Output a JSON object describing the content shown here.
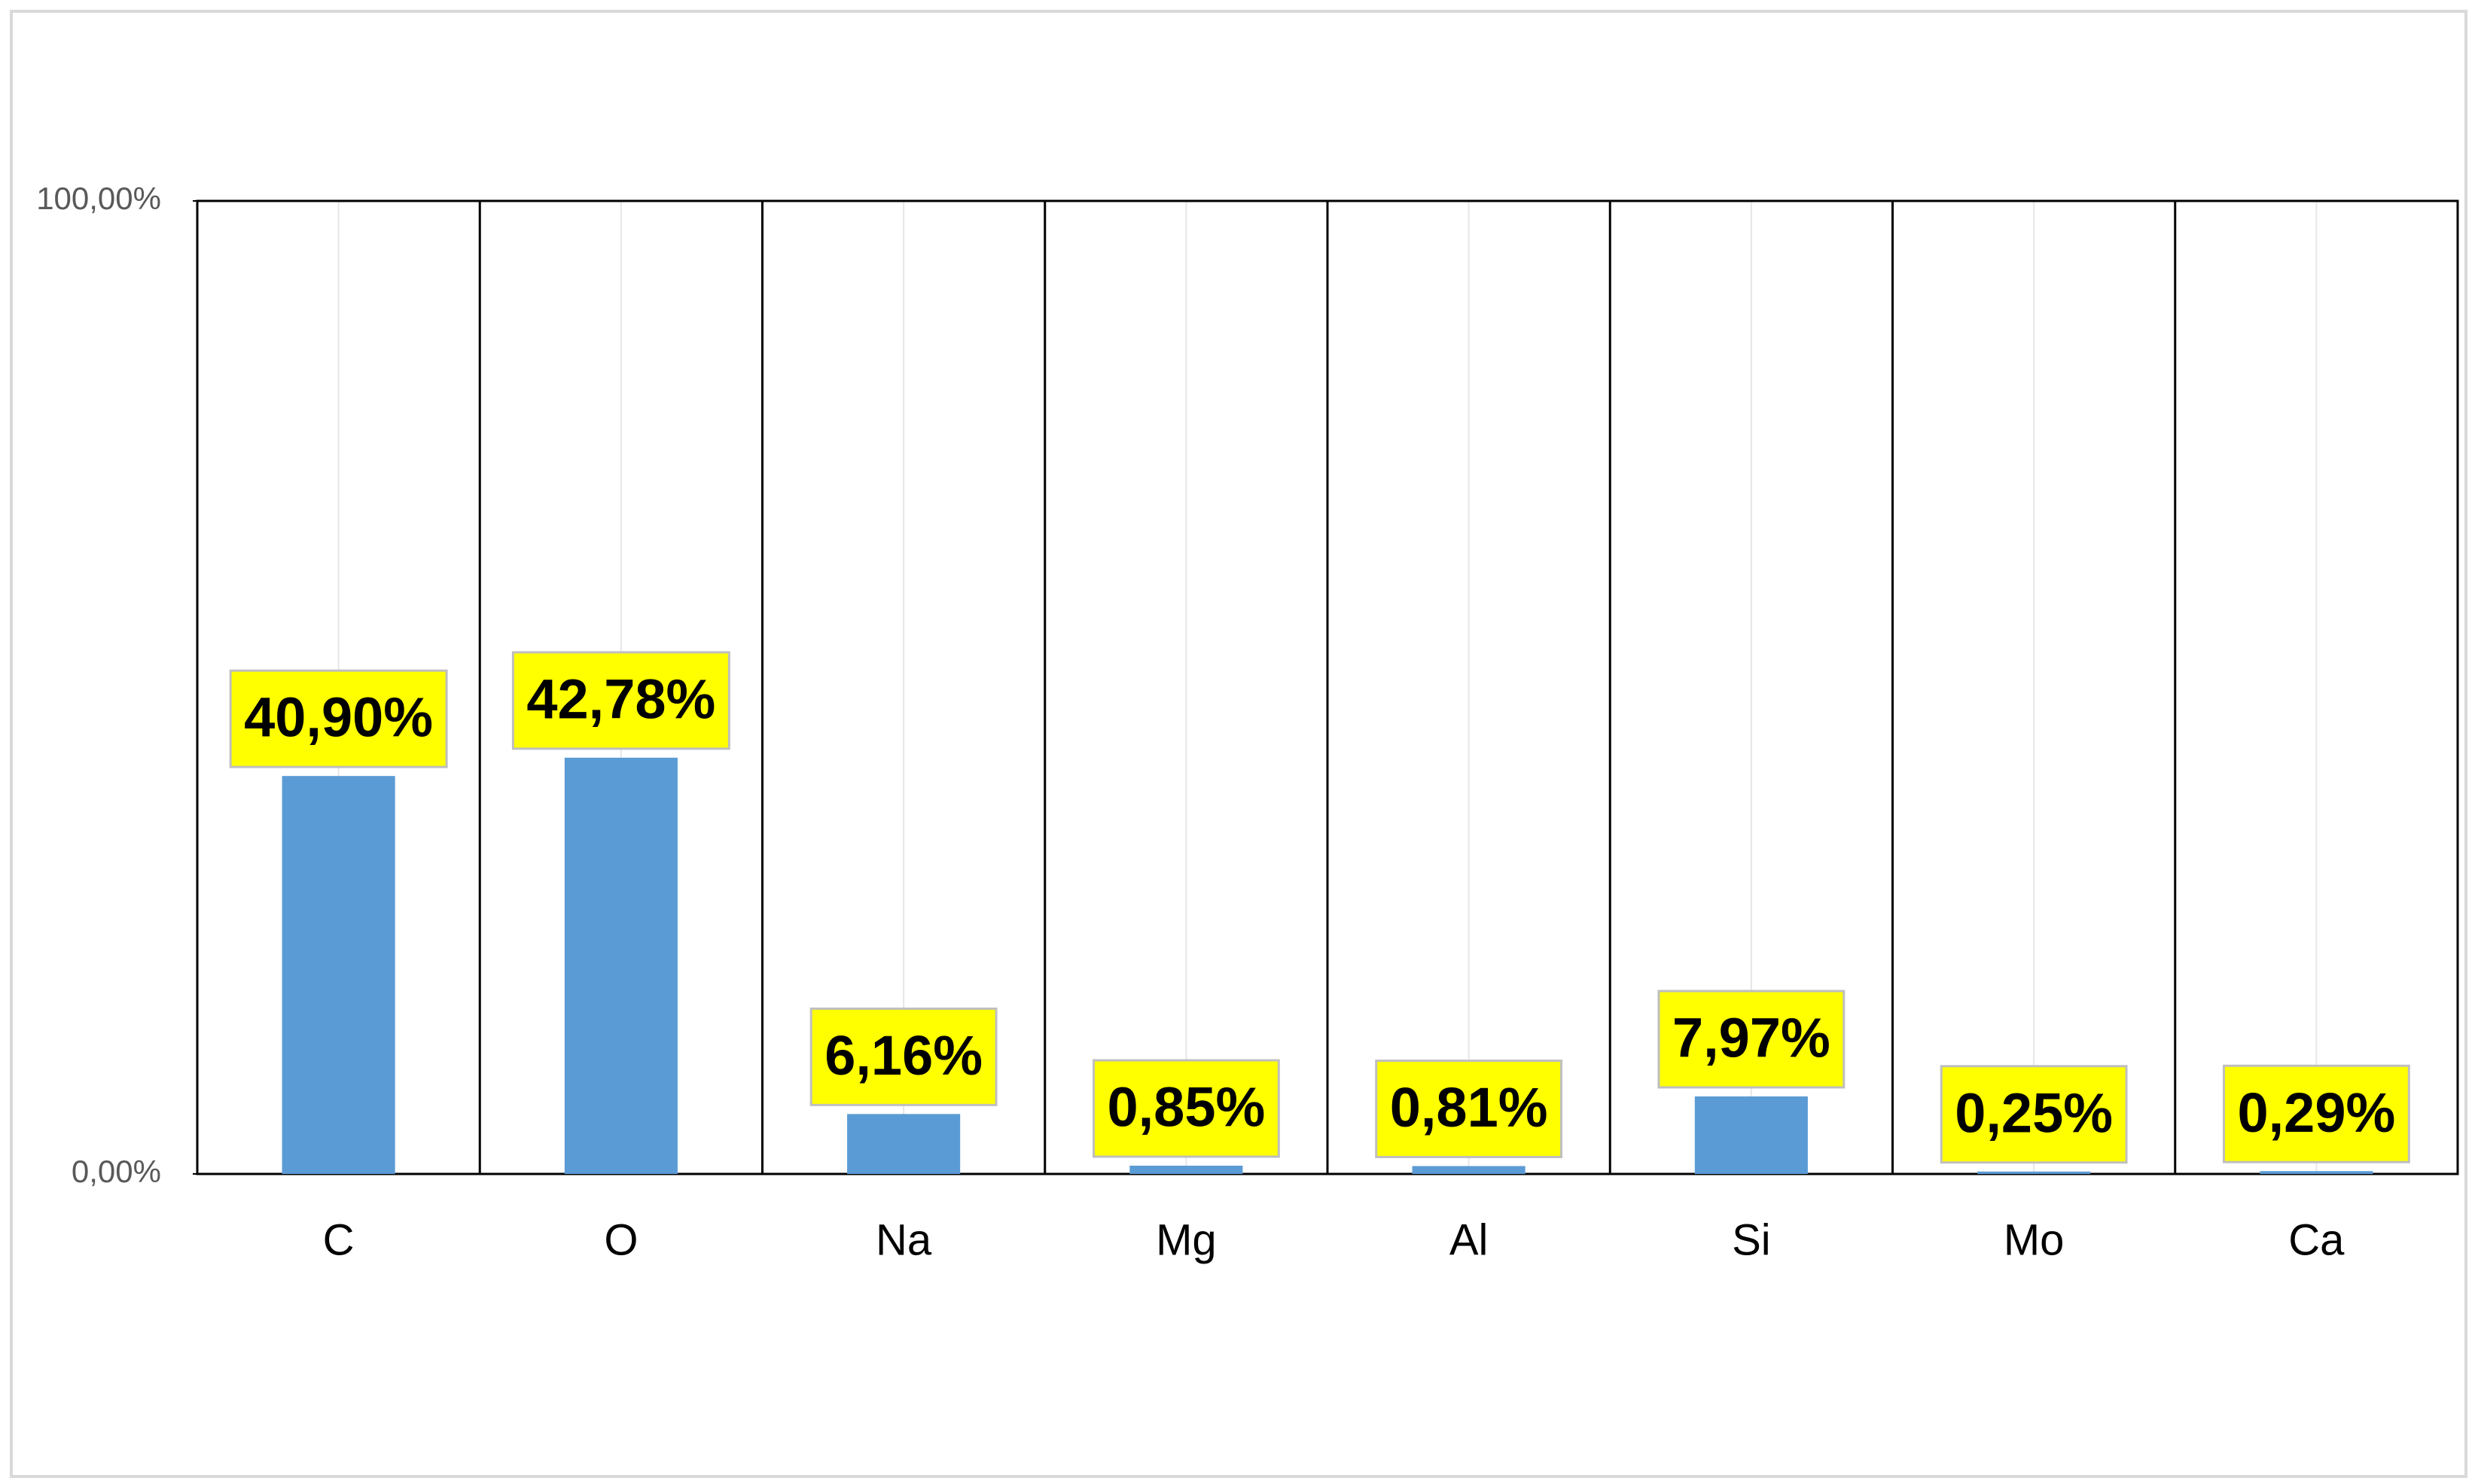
{
  "chart_data": {
    "type": "bar",
    "categories": [
      "C",
      "O",
      "Na",
      "Mg",
      "Al",
      "Si",
      "Mo",
      "Ca"
    ],
    "values": [
      40.9,
      42.78,
      6.16,
      0.85,
      0.81,
      7.97,
      0.25,
      0.29
    ],
    "value_labels": [
      "40,90%",
      "42,78%",
      "6,16%",
      "0,85%",
      "0,81%",
      "7,97%",
      "0,25%",
      "0,29%"
    ],
    "color": "#5b9bd5",
    "ylim": [
      0,
      100
    ],
    "yticks": [
      {
        "value": 0,
        "label": "0,00%"
      },
      {
        "value": 100,
        "label": "100,00%"
      }
    ]
  }
}
